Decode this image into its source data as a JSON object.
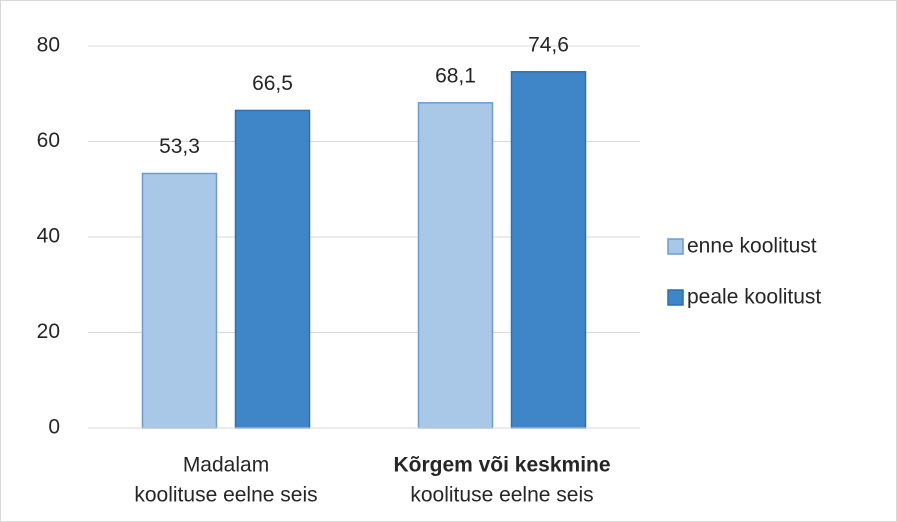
{
  "chart_data": {
    "type": "bar",
    "categories": [
      [
        "Madalam",
        "koolituse eelne seis"
      ],
      [
        "Kõrgem või keskmine",
        "koolituse eelne seis"
      ]
    ],
    "series": [
      {
        "name": "enne koolitust",
        "color": "#a9c8e8",
        "values": [
          53.3,
          68.1
        ],
        "value_labels": [
          "53,3",
          "68,1"
        ]
      },
      {
        "name": "peale koolitust",
        "color": "#3f86c8",
        "values": [
          66.5,
          74.6
        ],
        "value_labels": [
          "66,5",
          "74,6"
        ]
      }
    ],
    "ylim": [
      0,
      80
    ],
    "yticks": [
      0,
      20,
      40,
      60,
      80
    ],
    "grid": true,
    "legend": "right"
  }
}
